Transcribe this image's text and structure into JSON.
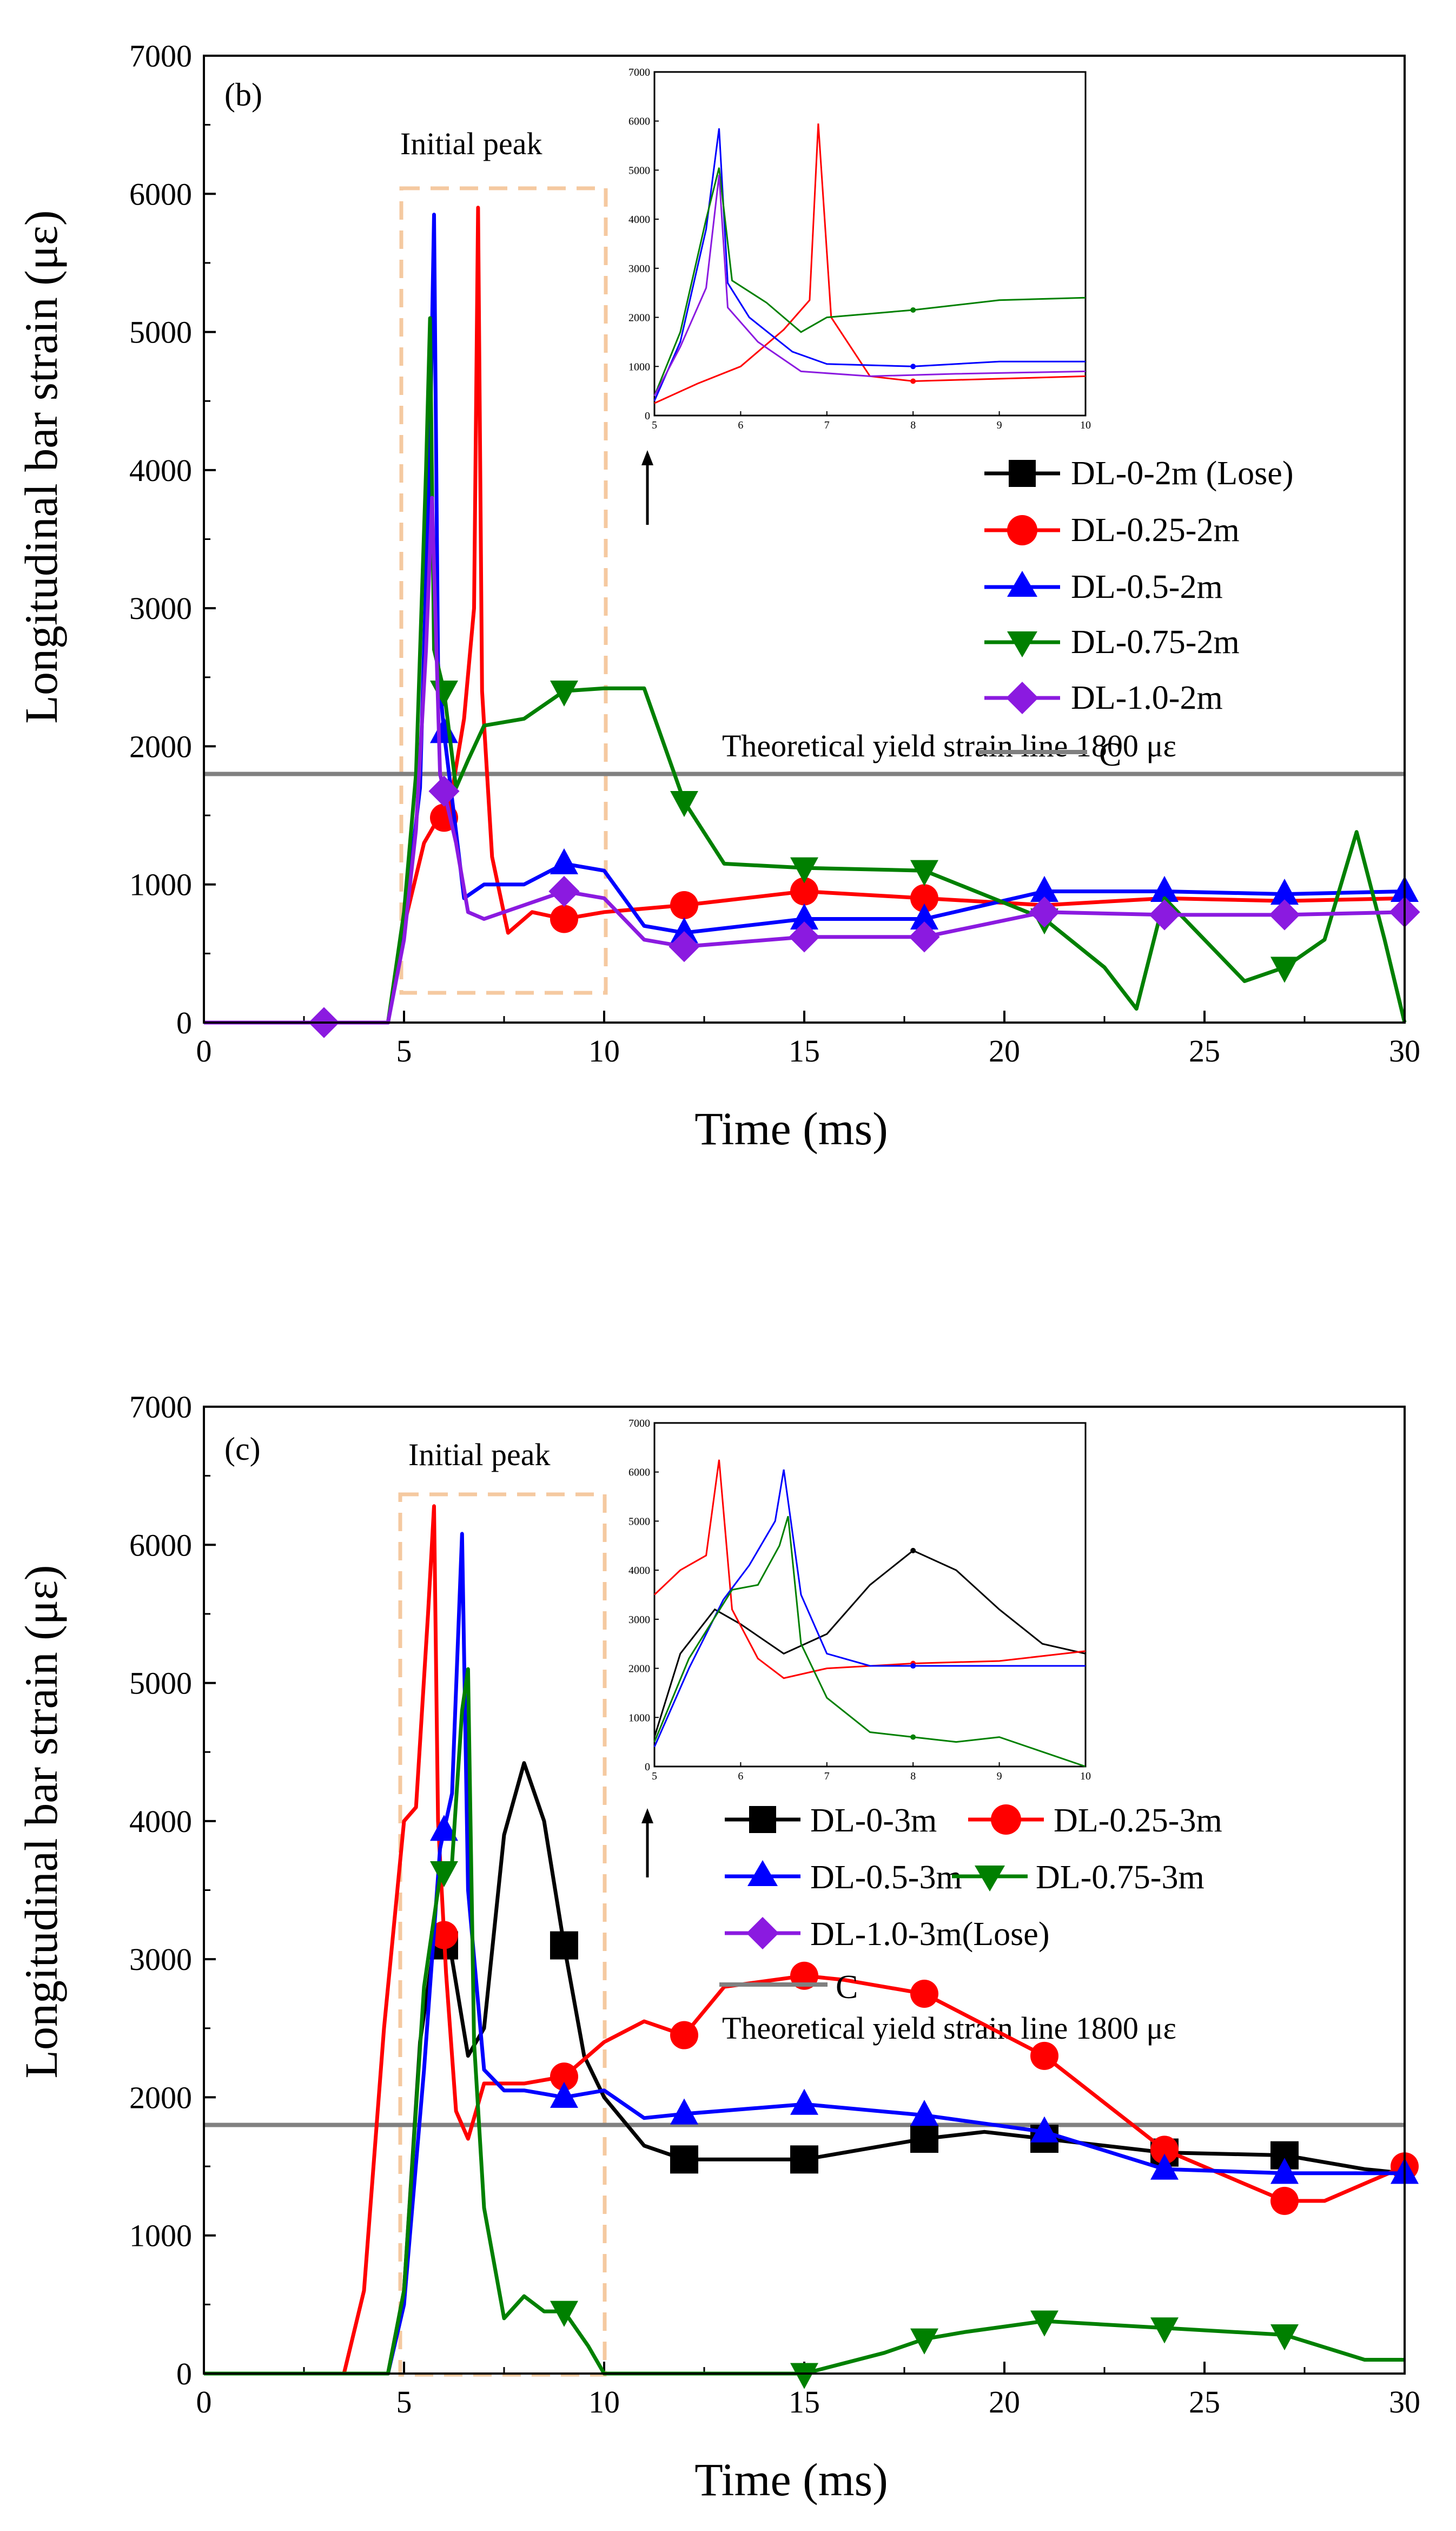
{
  "colors": {
    "DL-0": "#000000",
    "DL-0.25": "#ff0000",
    "DL-0.5": "#0000ff",
    "DL-0.75": "#008000",
    "DL-1.0": "#8b1ae0",
    "yield_line": "#808080",
    "box": "#f5c9a0"
  },
  "chart_data": [
    {
      "panel": "(b)",
      "type": "line",
      "xlabel": "Time (ms)",
      "ylabel": "Longitudinal bar strain (με)",
      "xlim": [
        0,
        30
      ],
      "ylim": [
        0,
        7000
      ],
      "xticks": [
        0,
        5,
        10,
        15,
        20,
        25,
        30
      ],
      "yticks": [
        0,
        1000,
        2000,
        3000,
        4000,
        5000,
        6000,
        7000
      ],
      "box_label": "Initial peak",
      "yield_label": "Theoretical yield strain line 1800 με",
      "yield_value": 1800,
      "legend": [
        "DL-0-2m (Lose)",
        "DL-0.25-2m",
        "DL-0.5-2m",
        "DL-0.75-2m",
        "DL-1.0-2m",
        "C"
      ],
      "series": [
        {
          "name": "DL-0-2m (Lose)",
          "key": "DL-0",
          "marker": "square",
          "x": [],
          "y": [],
          "markers_x": []
        },
        {
          "name": "DL-0.25-2m",
          "key": "DL-0.25",
          "marker": "circle",
          "x": [
            0,
            4.6,
            5,
            5.5,
            5.8,
            6.1,
            6.5,
            6.75,
            6.85,
            6.95,
            7.2,
            7.6,
            8.2,
            9,
            10,
            12,
            15,
            18,
            21,
            24,
            27,
            30
          ],
          "y": [
            0,
            0,
            700,
            1300,
            1450,
            1500,
            2200,
            3000,
            5900,
            2400,
            1200,
            650,
            800,
            750,
            800,
            850,
            950,
            900,
            850,
            900,
            880,
            900
          ],
          "markers_x": [
            6,
            9,
            12,
            15,
            18
          ]
        },
        {
          "name": "DL-0.5-2m",
          "key": "DL-0.5",
          "marker": "triangle-up",
          "x": [
            0,
            4.6,
            5,
            5.4,
            5.65,
            5.75,
            5.85,
            6,
            6.5,
            7,
            8,
            9,
            10,
            11,
            12,
            15,
            18,
            21,
            24,
            27,
            30
          ],
          "y": [
            0,
            0,
            700,
            1700,
            4200,
            5850,
            2600,
            2100,
            900,
            1000,
            1000,
            1150,
            1100,
            700,
            650,
            750,
            750,
            950,
            950,
            930,
            950
          ],
          "markers_x": [
            6,
            9,
            12,
            15,
            18,
            21,
            24,
            27,
            30
          ]
        },
        {
          "name": "DL-0.75-2m",
          "key": "DL-0.75",
          "marker": "triangle-down",
          "x": [
            0,
            4.6,
            5,
            5.3,
            5.55,
            5.65,
            5.75,
            6,
            6.3,
            6.6,
            7,
            8,
            9,
            10,
            11,
            12,
            13,
            15,
            18,
            21,
            22.5,
            23.3,
            24,
            25,
            26,
            27,
            28,
            28.8,
            29.5,
            30
          ],
          "y": [
            0,
            0,
            800,
            1800,
            4000,
            5100,
            2700,
            2400,
            1700,
            1900,
            2150,
            2200,
            2400,
            2420,
            2420,
            1600,
            1150,
            1120,
            1100,
            750,
            400,
            100,
            900,
            600,
            300,
            400,
            600,
            1380,
            600,
            0
          ],
          "markers_x": [
            6,
            9,
            12,
            15,
            18,
            21,
            27
          ]
        },
        {
          "name": "DL-1.0-2m",
          "key": "DL-1.0",
          "marker": "diamond",
          "x": [
            0,
            4.6,
            5,
            5.3,
            5.55,
            5.7,
            5.9,
            6.3,
            6.6,
            7,
            8,
            9,
            10,
            11,
            12,
            15,
            18,
            21,
            24,
            27,
            30
          ],
          "y": [
            0,
            0,
            600,
            1400,
            2700,
            3800,
            1800,
            1300,
            800,
            750,
            850,
            950,
            900,
            600,
            550,
            620,
            620,
            800,
            780,
            780,
            800
          ],
          "markers_x": [
            3,
            6,
            9,
            12,
            15,
            18,
            21,
            24,
            27,
            30
          ]
        }
      ],
      "inset": {
        "xlim": [
          5,
          10
        ],
        "ylim": [
          0,
          7000
        ],
        "xticks": [
          5,
          6,
          7,
          8,
          9,
          10
        ],
        "yticks": [
          0,
          1000,
          2000,
          3000,
          4000,
          5000,
          6000,
          7000
        ],
        "series": [
          {
            "key": "DL-0.25",
            "x": [
              5,
              5.5,
              6,
              6.5,
              6.8,
              6.9,
              7.05,
              7.5,
              8,
              9,
              10
            ],
            "y": [
              250,
              650,
              1000,
              1750,
              2350,
              5950,
              2000,
              800,
              700,
              750,
              800
            ],
            "mark": 8
          },
          {
            "key": "DL-0.5",
            "x": [
              5,
              5.3,
              5.6,
              5.75,
              5.85,
              6.1,
              6.6,
              7,
              8,
              9,
              10
            ],
            "y": [
              300,
              1500,
              3800,
              5850,
              2700,
              2000,
              1300,
              1050,
              1000,
              1100,
              1100
            ],
            "mark": 8
          },
          {
            "key": "DL-0.75",
            "x": [
              5,
              5.3,
              5.6,
              5.75,
              5.9,
              6.3,
              6.7,
              7,
              8,
              9,
              10
            ],
            "y": [
              400,
              1700,
              4000,
              5050,
              2750,
              2300,
              1700,
              2000,
              2150,
              2350,
              2400
            ],
            "mark": 8
          },
          {
            "key": "DL-1.0",
            "x": [
              5,
              5.3,
              5.6,
              5.75,
              5.85,
              6.2,
              6.7,
              7.5,
              8.5,
              10
            ],
            "y": [
              400,
              1400,
              2600,
              4900,
              2200,
              1500,
              900,
              800,
              850,
              900
            ],
            "mark": null
          }
        ]
      }
    },
    {
      "panel": "(c)",
      "type": "line",
      "xlabel": "Time (ms)",
      "ylabel": "Longitudinal bar strain (με)",
      "xlim": [
        0,
        30
      ],
      "ylim": [
        0,
        7000
      ],
      "xticks": [
        0,
        5,
        10,
        15,
        20,
        25,
        30
      ],
      "yticks": [
        0,
        1000,
        2000,
        3000,
        4000,
        5000,
        6000,
        7000
      ],
      "box_label": "Initial peak",
      "yield_label": "Theoretical yield strain line 1800 με",
      "yield_value": 1800,
      "legend": [
        "DL-0-3m",
        "DL-0.25-3m",
        "DL-0.5-3m",
        "DL-0.75-3m",
        "DL-1.0-3m(Lose)",
        "C"
      ],
      "series": [
        {
          "name": "DL-0-3m",
          "key": "DL-0",
          "marker": "square",
          "x": [
            0,
            4.6,
            5,
            5.4,
            5.8,
            6.2,
            6.6,
            7,
            7.5,
            8,
            8.5,
            9,
            9.5,
            10,
            11,
            12,
            15,
            18,
            19.5,
            21,
            24,
            27,
            29,
            30
          ],
          "y": [
            0,
            0,
            600,
            2400,
            3200,
            3000,
            2300,
            2500,
            3900,
            4420,
            4000,
            3100,
            2300,
            2000,
            1650,
            1550,
            1550,
            1700,
            1750,
            1700,
            1600,
            1580,
            1480,
            1450
          ],
          "markers_x": [
            6,
            9,
            12,
            15,
            18,
            21,
            24,
            27
          ]
        },
        {
          "name": "DL-0.25-3m",
          "key": "DL-0.25",
          "marker": "circle",
          "x": [
            0,
            3.5,
            4,
            4.5,
            5,
            5.3,
            5.6,
            5.75,
            5.85,
            6.05,
            6.3,
            6.6,
            7,
            8,
            9,
            10,
            11,
            12,
            13,
            15,
            16,
            18,
            21,
            24,
            27,
            28,
            30
          ],
          "y": [
            0,
            0,
            600,
            2500,
            4000,
            4100,
            5500,
            6280,
            4000,
            2900,
            1900,
            1700,
            2100,
            2100,
            2150,
            2400,
            2550,
            2450,
            2800,
            2880,
            2850,
            2750,
            2300,
            1620,
            1250,
            1250,
            1500
          ],
          "markers_x": [
            6,
            9,
            12,
            15,
            18,
            21,
            24,
            27,
            30
          ]
        },
        {
          "name": "DL-0.5-3m",
          "key": "DL-0.5",
          "marker": "triangle-up",
          "x": [
            0,
            4.6,
            5,
            5.5,
            5.9,
            6.2,
            6.45,
            6.6,
            7,
            7.5,
            8,
            9,
            10,
            11,
            12,
            15,
            18,
            21,
            24,
            27,
            30
          ],
          "y": [
            0,
            0,
            500,
            2200,
            3800,
            4200,
            6080,
            3500,
            2200,
            2050,
            2050,
            2000,
            2050,
            1850,
            1880,
            1950,
            1870,
            1750,
            1480,
            1450,
            1450
          ],
          "markers_x": [
            6,
            9,
            12,
            15,
            18,
            21,
            24,
            27,
            30
          ]
        },
        {
          "name": "DL-0.75-3m",
          "key": "DL-0.75",
          "marker": "triangle-down",
          "x": [
            0,
            4.6,
            5,
            5.5,
            5.9,
            6.2,
            6.45,
            6.6,
            6.75,
            7,
            7.5,
            8,
            8.5,
            9,
            9.6,
            10,
            15,
            17,
            18,
            19,
            21,
            24,
            27,
            29,
            30
          ],
          "y": [
            0,
            0,
            600,
            2800,
            3600,
            3700,
            4800,
            5100,
            2400,
            1200,
            400,
            560,
            450,
            450,
            200,
            0,
            0,
            150,
            250,
            300,
            380,
            330,
            280,
            100,
            100
          ],
          "markers_x": [
            6,
            9,
            15,
            18,
            21,
            24,
            27
          ]
        },
        {
          "name": "DL-1.0-3m(Lose)",
          "key": "DL-1.0",
          "marker": "diamond",
          "x": [],
          "y": [],
          "markers_x": []
        }
      ],
      "inset": {
        "xlim": [
          5,
          10
        ],
        "ylim": [
          0,
          7000
        ],
        "xticks": [
          5,
          6,
          7,
          8,
          9,
          10
        ],
        "yticks": [
          0,
          1000,
          2000,
          3000,
          4000,
          5000,
          6000,
          7000
        ],
        "series": [
          {
            "key": "DL-0",
            "x": [
              5,
              5.3,
              5.7,
              6,
              6.5,
              7,
              7.5,
              8,
              8.5,
              9,
              9.5,
              10
            ],
            "y": [
              600,
              2300,
              3200,
              2900,
              2300,
              2700,
              3700,
              4400,
              4000,
              3200,
              2500,
              2300
            ],
            "mark": 8
          },
          {
            "key": "DL-0.25",
            "x": [
              5,
              5.3,
              5.6,
              5.75,
              5.9,
              6.2,
              6.5,
              7,
              8,
              9,
              10
            ],
            "y": [
              3500,
              4000,
              4300,
              6250,
              3200,
              2200,
              1800,
              2000,
              2100,
              2150,
              2350
            ],
            "mark": 8
          },
          {
            "key": "DL-0.5",
            "x": [
              5,
              5.4,
              5.8,
              6.1,
              6.4,
              6.5,
              6.7,
              7,
              7.5,
              8,
              9,
              10
            ],
            "y": [
              400,
              2000,
              3400,
              4100,
              5000,
              6050,
              3500,
              2300,
              2050,
              2050,
              2050,
              2050
            ],
            "mark": 8
          },
          {
            "key": "DL-0.75",
            "x": [
              5,
              5.4,
              5.9,
              6.2,
              6.45,
              6.55,
              6.7,
              7,
              7.5,
              8,
              8.5,
              9,
              9.5,
              10
            ],
            "y": [
              500,
              2200,
              3600,
              3700,
              4500,
              5100,
              2500,
              1400,
              700,
              600,
              500,
              600,
              300,
              0
            ],
            "mark": 8
          }
        ]
      }
    }
  ]
}
